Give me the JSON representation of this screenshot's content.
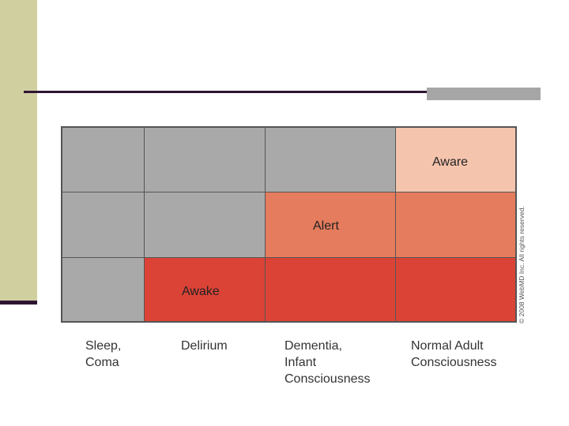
{
  "colors": {
    "sidebar": "#cfcfa0",
    "rule": "#2e1433",
    "rule_accent": "#a6a6a6",
    "gray": "#a9a9a9",
    "pale_orange": "#f5c4ad",
    "orange": "#e57c5d",
    "red": "#dc4337"
  },
  "grid": {
    "rows": [
      {
        "cells": [
          {
            "color": "gray",
            "label": ""
          },
          {
            "color": "gray",
            "label": ""
          },
          {
            "color": "gray",
            "label": ""
          },
          {
            "color": "pale_orange",
            "label": "Aware"
          }
        ]
      },
      {
        "cells": [
          {
            "color": "gray",
            "label": ""
          },
          {
            "color": "gray",
            "label": ""
          },
          {
            "color": "orange",
            "label": "Alert"
          },
          {
            "color": "orange",
            "label": ""
          }
        ]
      },
      {
        "cells": [
          {
            "color": "gray",
            "label": ""
          },
          {
            "color": "red",
            "label": "Awake"
          },
          {
            "color": "red",
            "label": ""
          },
          {
            "color": "red",
            "label": ""
          }
        ]
      }
    ],
    "column_labels": [
      [
        "Sleep,",
        "Coma"
      ],
      [
        "Delirium"
      ],
      [
        "Dementia,",
        "Infant",
        "Consciousness"
      ],
      [
        "Normal Adult",
        "Consciousness"
      ]
    ]
  },
  "copyright": "© 2008 WebMD Inc. All rights reserved."
}
